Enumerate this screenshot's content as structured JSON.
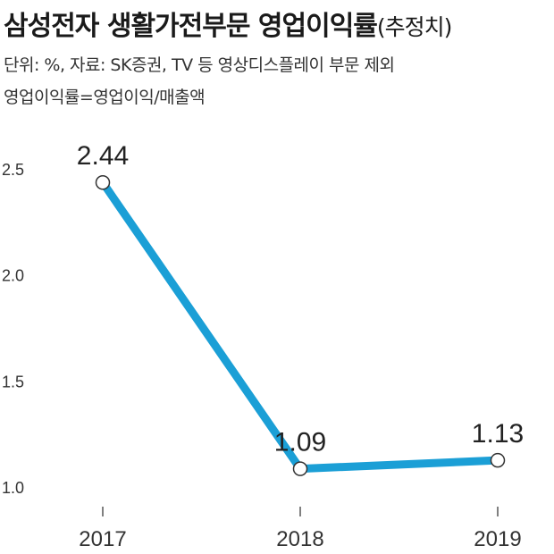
{
  "chart_data": {
    "type": "line",
    "title": "삼성전자 생활가전부문 영업이익률",
    "title_suffix": "(추정치)",
    "notes": [
      "단위: %, 자료: SK증권, TV 등 영상디스플레이 부문 제외",
      "영업이익률=영업이익/매출액"
    ],
    "categories": [
      "2017",
      "2018",
      "2019"
    ],
    "series": [
      {
        "values": [
          2.44,
          1.09,
          1.13
        ],
        "color": "#1b9fd6"
      }
    ],
    "data_labels": [
      "2.44",
      "1.09",
      "1.13"
    ],
    "y_ticks": [
      "2.5",
      "2.0",
      "1.5",
      "1.0"
    ],
    "ylim": [
      1.0,
      2.5
    ],
    "grid": false,
    "legend": "none"
  }
}
